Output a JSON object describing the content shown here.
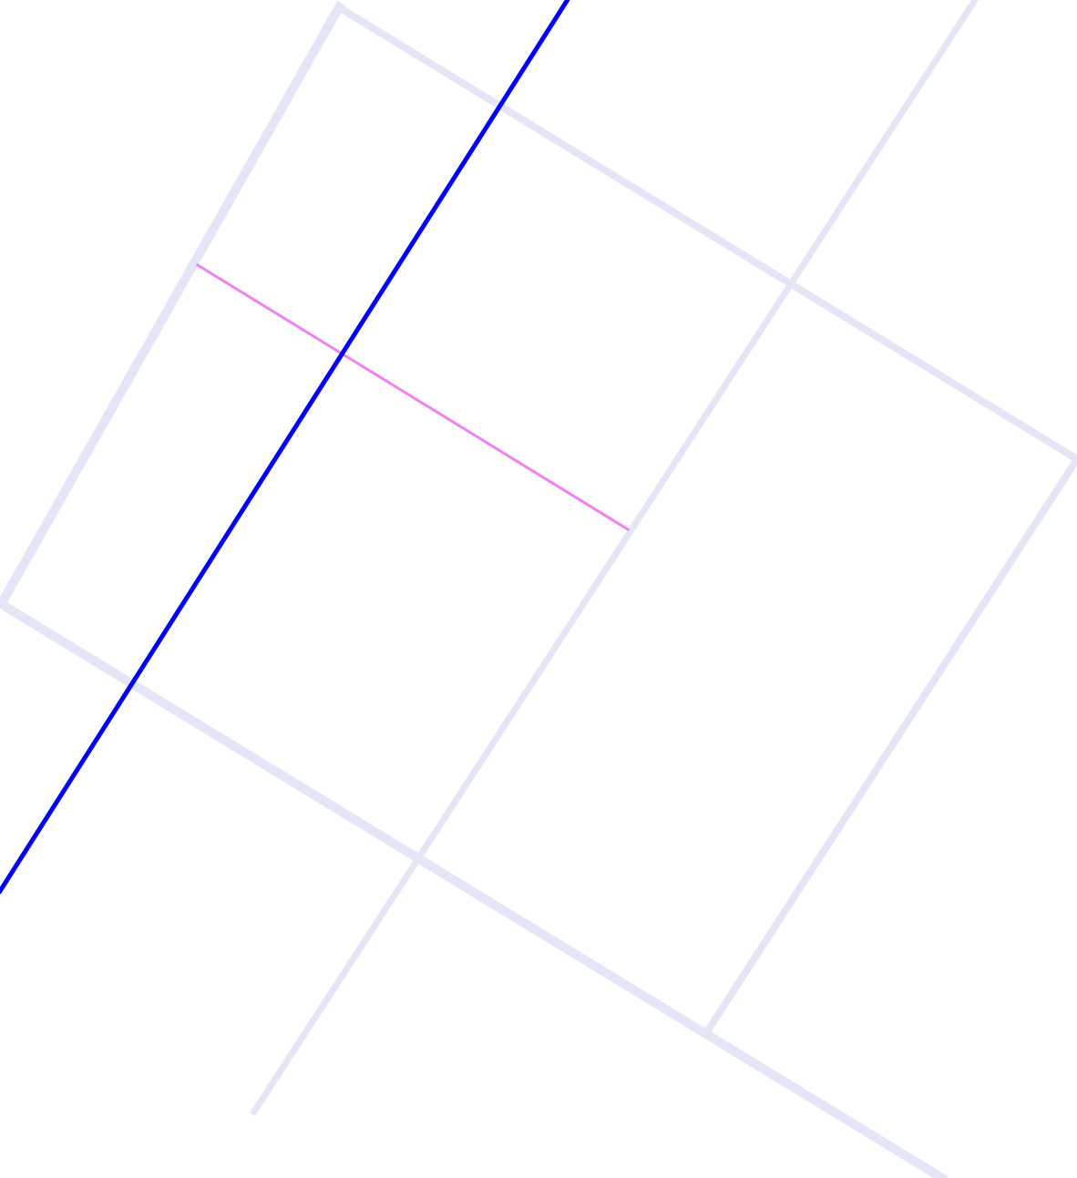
{
  "map": {
    "background_color": "#ffffff",
    "colors": {
      "minor_road": "#e4e5f7",
      "primary_road": "#0000ff",
      "connector_road": "#ee82ee"
    },
    "labels": []
  }
}
